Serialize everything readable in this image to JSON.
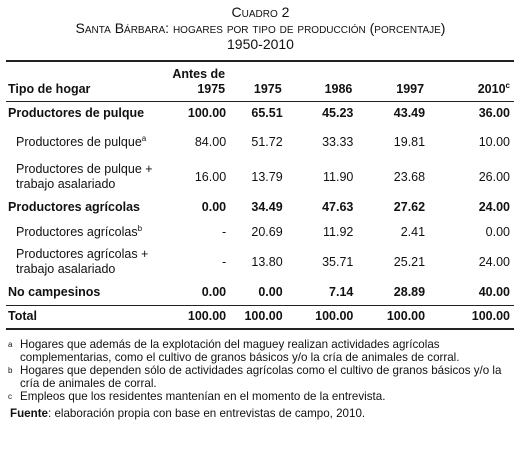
{
  "header": {
    "label": "Cuadro 2",
    "title": "Santa Bárbara: hogares por tipo de producción (porcentaje)",
    "period": "1950-2010"
  },
  "table": {
    "columns": [
      {
        "label": "Tipo de hogar"
      },
      {
        "label": "Antes de 1975"
      },
      {
        "label": "1975"
      },
      {
        "label": "1986"
      },
      {
        "label": "1997"
      },
      {
        "label": "2010",
        "note": "c"
      }
    ],
    "rows": [
      {
        "label": "Productores de pulque",
        "values": [
          "100.00",
          "65.51",
          "45.23",
          "43.49",
          "36.00"
        ]
      },
      {
        "label": "Productores de pulque",
        "note": "a",
        "values": [
          "84.00",
          "51.72",
          "33.33",
          "19.81",
          "10.00"
        ]
      },
      {
        "label": "Productores de pulque + trabajo asalariado",
        "values": [
          "16.00",
          "13.79",
          "11.90",
          "23.68",
          "26.00"
        ]
      },
      {
        "label": "Productores agrícolas",
        "values": [
          "0.00",
          "34.49",
          "47.63",
          "27.62",
          "24.00"
        ]
      },
      {
        "label": "Productores agrícolas",
        "note": "b",
        "values": [
          "-",
          "20.69",
          "11.92",
          "2.41",
          "0.00"
        ]
      },
      {
        "label": "Productores agrícolas + trabajo asalariado",
        "values": [
          "-",
          "13.80",
          "35.71",
          "25.21",
          "24.00"
        ]
      },
      {
        "label": "No campesinos",
        "values": [
          "0.00",
          "0.00",
          "7.14",
          "28.89",
          "40.00"
        ]
      },
      {
        "label": "Total",
        "values": [
          "100.00",
          "100.00",
          "100.00",
          "100.00",
          "100.00"
        ]
      }
    ]
  },
  "notes": [
    {
      "mark": "a",
      "text": "Hogares que además de la explotación del maguey realizan actividades agrícolas complementarias, como el cultivo de granos básicos y/o la cría de animales de corral."
    },
    {
      "mark": "b",
      "text": "Hogares que dependen sólo de actividades agrícolas como el cultivo de granos básicos y/o la cría de animales de corral."
    },
    {
      "mark": "c",
      "text": "Empleos que los residentes mantenían en el momento de la entrevista."
    }
  ],
  "source": {
    "label": "Fuente",
    "text": ": elaboración propia con base en entrevistas de campo, 2010."
  }
}
